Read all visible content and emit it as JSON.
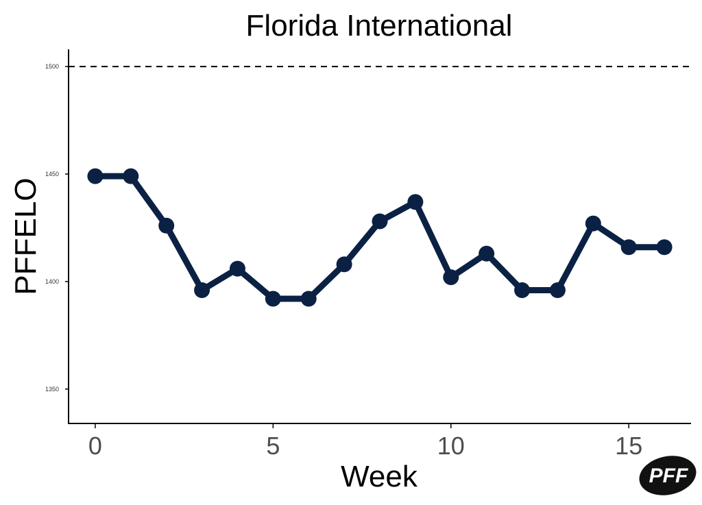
{
  "chart_data": {
    "type": "line",
    "title": "Florida International",
    "xlabel": "Week",
    "ylabel": "PFFELO",
    "xlim": [
      -0.75,
      16.75
    ],
    "ylim": [
      1334,
      1508
    ],
    "x_ticks": [
      0,
      5,
      10,
      15
    ],
    "y_ticks": [
      1350,
      1400,
      1450,
      1500
    ],
    "reference_line": {
      "y": 1500,
      "style": "dashed"
    },
    "grid": false,
    "legend": "none",
    "series": [
      {
        "x": [
          0,
          1,
          2,
          3,
          4,
          5,
          6,
          7,
          8,
          9,
          10,
          11,
          12,
          13,
          14,
          15,
          16
        ],
        "values": [
          1449,
          1449,
          1426,
          1396,
          1406,
          1392,
          1392,
          1408,
          1428,
          1437,
          1402,
          1413,
          1396,
          1396,
          1427,
          1416,
          1416
        ],
        "color": "#0b2144"
      }
    ]
  },
  "logo": {
    "text": "PFF",
    "color": "#111111"
  }
}
